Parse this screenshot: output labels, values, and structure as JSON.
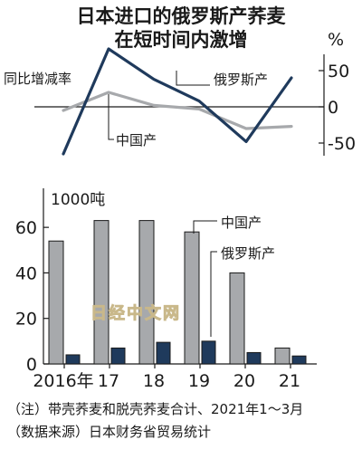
{
  "title_lines": [
    "日本进口的俄罗斯产荞麦",
    "在短时间内激增"
  ],
  "notes": [
    "（注）带壳荞麦和脱壳荞麦合计、2021年1～3月",
    "（数据来源）日本财务省贸易统计"
  ],
  "watermark": "日经中文网",
  "colors": {
    "russia": "#1f3a5c",
    "china": "#a7a9ac",
    "bar_outline": "#1a1a1a"
  },
  "chart_data": [
    {
      "type": "line",
      "xlabel": "",
      "ylabel": "同比增减率",
      "y_unit": "%",
      "ylim": [
        -60,
        80
      ],
      "yticks": [
        50,
        0,
        -50
      ],
      "x": [
        "2016年",
        "17",
        "18",
        "19",
        "20",
        "21"
      ],
      "series": [
        {
          "name": "俄罗斯产",
          "color": "#1f3a5c",
          "values": [
            -65,
            80,
            38,
            8,
            -48,
            40
          ]
        },
        {
          "name": "中国产",
          "color": "#a7a9ac",
          "values": [
            -5,
            20,
            2,
            -3,
            -30,
            -27
          ]
        }
      ],
      "legend_placement": "inline",
      "grid": false
    },
    {
      "type": "bar",
      "ylabel": "1000吨",
      "ylim": [
        0,
        70
      ],
      "yticks": [
        0,
        20,
        40,
        60
      ],
      "categories": [
        "2016年",
        "17",
        "18",
        "19",
        "20",
        "21"
      ],
      "series": [
        {
          "name": "中国产",
          "color": "#a7a9ac",
          "values": [
            54,
            63,
            63,
            58,
            40,
            7
          ]
        },
        {
          "name": "俄罗斯产",
          "color": "#1f3a5c",
          "values": [
            4,
            7,
            9.5,
            10,
            5,
            3.5
          ]
        }
      ],
      "legend_placement": "top-right",
      "grid": false
    }
  ]
}
